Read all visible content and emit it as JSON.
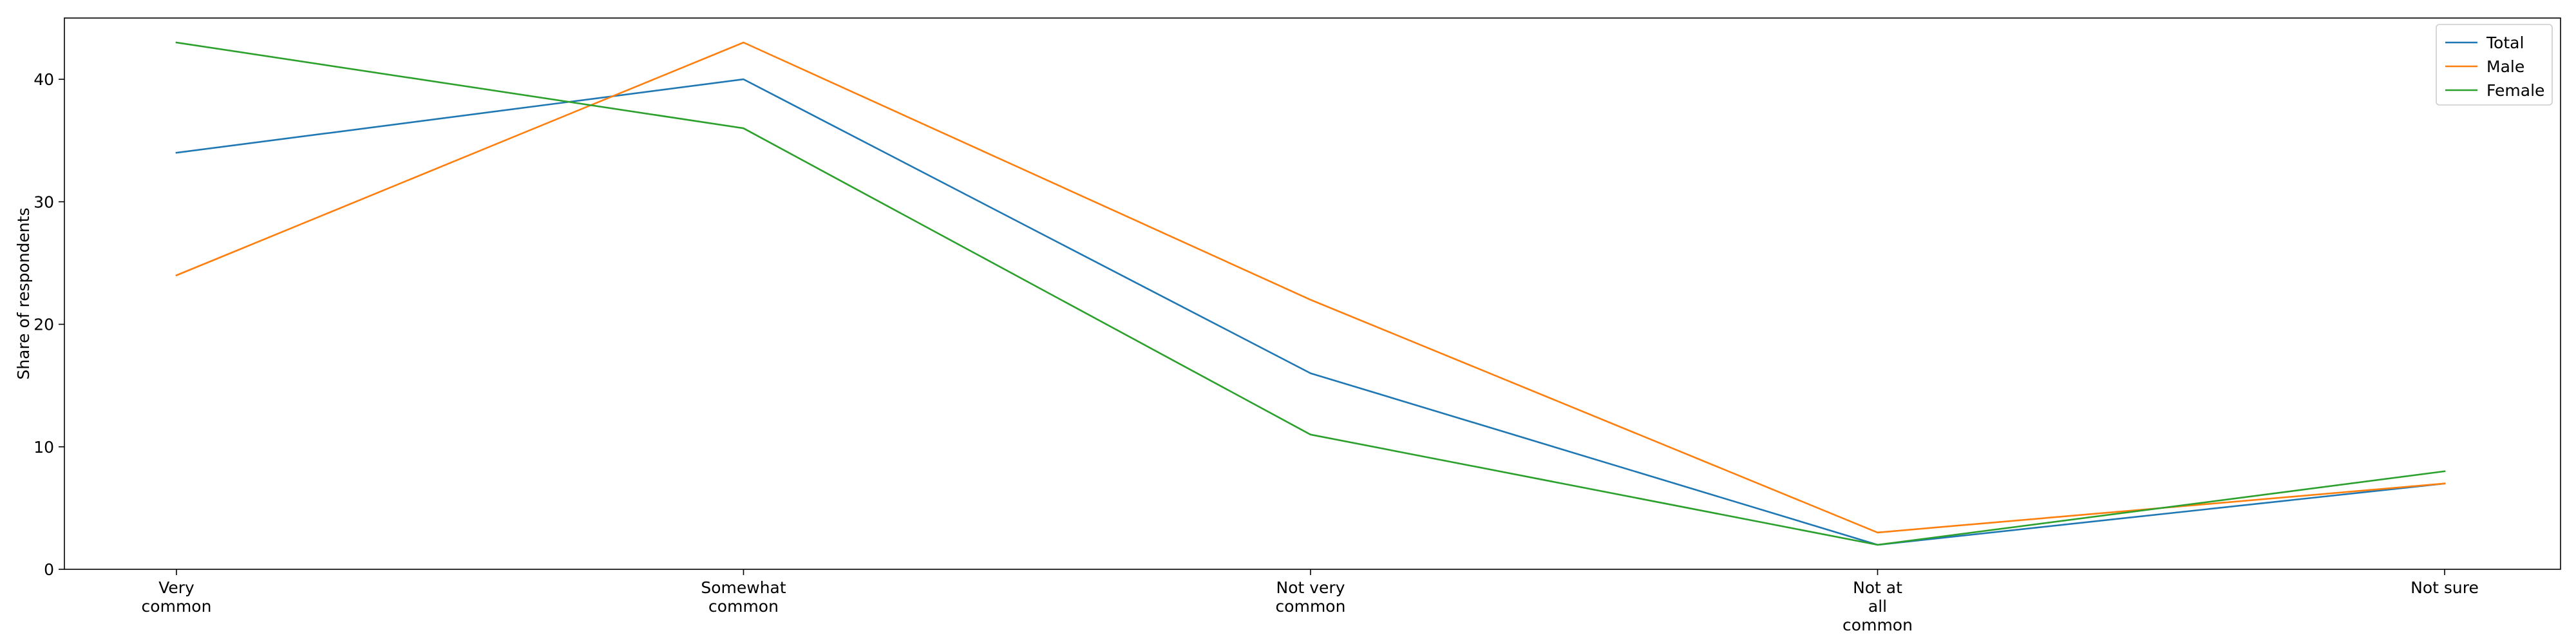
{
  "chart_data": {
    "type": "line",
    "title": "",
    "xlabel": "",
    "ylabel": "Share of respondents",
    "categories": [
      [
        "Very",
        "common"
      ],
      [
        "Somewhat",
        "common"
      ],
      [
        "Not very",
        "common"
      ],
      [
        "Not at",
        "all",
        "common"
      ],
      [
        "Not sure"
      ]
    ],
    "series": [
      {
        "name": "Total",
        "color": "#1f77b4",
        "values": [
          34,
          40,
          16,
          2,
          7
        ]
      },
      {
        "name": "Male",
        "color": "#ff7f0e",
        "values": [
          24,
          43,
          22,
          3,
          7
        ]
      },
      {
        "name": "Female",
        "color": "#2ca02c",
        "values": [
          43,
          36,
          11,
          2,
          8
        ]
      }
    ],
    "ylim": [
      0,
      45
    ],
    "yticks": [
      "0",
      "10",
      "20",
      "30",
      "40"
    ],
    "legend_position": "top-right",
    "grid": false
  }
}
